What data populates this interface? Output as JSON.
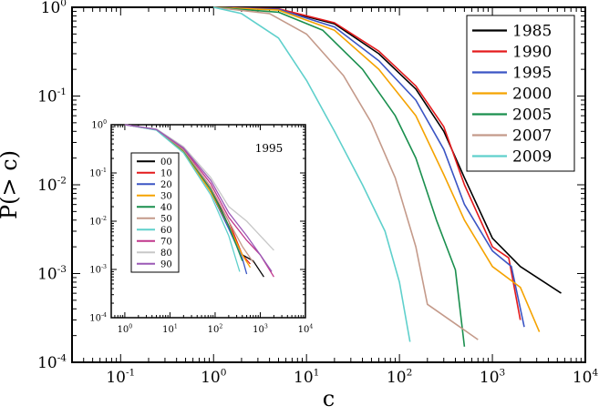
{
  "chart_data": [
    {
      "type": "line",
      "title": "",
      "xlabel": "c",
      "ylabel": "P(> c)",
      "xscale": "log",
      "yscale": "log",
      "xlim": [
        0.03,
        10000
      ],
      "ylim": [
        0.0001,
        1
      ],
      "x_ticks": [
        0.1,
        1,
        10,
        100,
        1000,
        10000
      ],
      "x_tick_labels": [
        [
          "10",
          "-1"
        ],
        [
          "10",
          "0"
        ],
        [
          "10",
          "1"
        ],
        [
          "10",
          "2"
        ],
        [
          "10",
          "3"
        ],
        [
          "10",
          "4"
        ]
      ],
      "y_ticks": [
        0.0001,
        0.001,
        0.01,
        0.1,
        1
      ],
      "y_tick_labels": [
        [
          "10",
          "-4"
        ],
        [
          "10",
          "-3"
        ],
        [
          "10",
          "-2"
        ],
        [
          "10",
          "-1"
        ],
        [
          "10",
          "0"
        ]
      ],
      "grid": false,
      "legend_position": "top-right",
      "series": [
        {
          "name": "1985",
          "color": "#000000",
          "points": [
            [
              1,
              1
            ],
            [
              5,
              0.95
            ],
            [
              20,
              0.65
            ],
            [
              60,
              0.3
            ],
            [
              150,
              0.12
            ],
            [
              300,
              0.04
            ],
            [
              500,
              0.012
            ],
            [
              1000,
              0.0025
            ],
            [
              2000,
              0.0012
            ],
            [
              5500,
              0.0006
            ]
          ]
        },
        {
          "name": "1990",
          "color": "#e41a1c",
          "points": [
            [
              1,
              1
            ],
            [
              5,
              0.96
            ],
            [
              20,
              0.67
            ],
            [
              60,
              0.32
            ],
            [
              150,
              0.13
            ],
            [
              300,
              0.045
            ],
            [
              500,
              0.01
            ],
            [
              1000,
              0.002
            ],
            [
              1500,
              0.0015
            ],
            [
              2000,
              0.0003
            ]
          ]
        },
        {
          "name": "1995",
          "color": "#3b55c4",
          "points": [
            [
              1,
              1
            ],
            [
              5,
              0.95
            ],
            [
              20,
              0.6
            ],
            [
              60,
              0.25
            ],
            [
              150,
              0.09
            ],
            [
              300,
              0.025
            ],
            [
              500,
              0.006
            ],
            [
              1000,
              0.0018
            ],
            [
              1600,
              0.0012
            ],
            [
              2200,
              0.00025
            ]
          ]
        },
        {
          "name": "2000",
          "color": "#f5a300",
          "points": [
            [
              1,
              1
            ],
            [
              5,
              0.93
            ],
            [
              20,
              0.55
            ],
            [
              60,
              0.2
            ],
            [
              150,
              0.06
            ],
            [
              300,
              0.013
            ],
            [
              500,
              0.004
            ],
            [
              1000,
              0.0012
            ],
            [
              2000,
              0.0007
            ],
            [
              3200,
              0.00022
            ]
          ]
        },
        {
          "name": "2005",
          "color": "#1a8f4e",
          "points": [
            [
              1,
              1
            ],
            [
              5,
              0.88
            ],
            [
              15,
              0.55
            ],
            [
              40,
              0.2
            ],
            [
              90,
              0.06
            ],
            [
              150,
              0.02
            ],
            [
              250,
              0.004
            ],
            [
              400,
              0.0011
            ],
            [
              500,
              0.00015
            ]
          ]
        },
        {
          "name": "2007",
          "color": "#c49a8a",
          "points": [
            [
              1,
              1
            ],
            [
              4,
              0.85
            ],
            [
              10,
              0.5
            ],
            [
              25,
              0.17
            ],
            [
              50,
              0.05
            ],
            [
              90,
              0.012
            ],
            [
              150,
              0.002
            ],
            [
              200,
              0.00045
            ],
            [
              700,
              0.00018
            ]
          ]
        },
        {
          "name": "2009",
          "color": "#5fd0cc",
          "points": [
            [
              1,
              1
            ],
            [
              2,
              0.85
            ],
            [
              5,
              0.45
            ],
            [
              10,
              0.15
            ],
            [
              20,
              0.04
            ],
            [
              40,
              0.01
            ],
            [
              70,
              0.003
            ],
            [
              100,
              0.0008
            ],
            [
              130,
              0.00017
            ]
          ]
        }
      ]
    },
    {
      "type": "line",
      "title": "1995",
      "xlabel": "",
      "ylabel": "",
      "xscale": "log",
      "yscale": "log",
      "xlim": [
        0.5,
        10000
      ],
      "ylim": [
        0.0001,
        1
      ],
      "x_ticks": [
        1,
        10,
        100,
        1000,
        10000
      ],
      "x_tick_labels": [
        [
          "10",
          "0"
        ],
        [
          "10",
          "1"
        ],
        [
          "10",
          "2"
        ],
        [
          "10",
          "3"
        ],
        [
          "10",
          "4"
        ]
      ],
      "y_ticks": [
        0.0001,
        0.001,
        0.01,
        0.1,
        1
      ],
      "y_tick_labels": [
        [
          "10",
          "-4"
        ],
        [
          "10",
          "-3"
        ],
        [
          "10",
          "-2"
        ],
        [
          "10",
          "-1"
        ],
        [
          "10",
          "0"
        ]
      ],
      "grid": false,
      "legend_position": "top-left",
      "series": [
        {
          "name": "00",
          "color": "#000000",
          "points": [
            [
              1,
              1
            ],
            [
              5,
              0.8
            ],
            [
              20,
              0.3
            ],
            [
              80,
              0.05
            ],
            [
              200,
              0.008
            ],
            [
              400,
              0.002
            ],
            [
              700,
              0.0015
            ],
            [
              1200,
              0.0007
            ]
          ]
        },
        {
          "name": "10",
          "color": "#e41a1c",
          "points": [
            [
              1,
              1
            ],
            [
              5,
              0.8
            ],
            [
              20,
              0.3
            ],
            [
              80,
              0.05
            ],
            [
              200,
              0.01
            ],
            [
              400,
              0.002
            ],
            [
              600,
              0.0013
            ]
          ]
        },
        {
          "name": "20",
          "color": "#3b55c4",
          "points": [
            [
              1,
              1
            ],
            [
              5,
              0.78
            ],
            [
              20,
              0.28
            ],
            [
              80,
              0.04
            ],
            [
              200,
              0.007
            ],
            [
              400,
              0.0017
            ],
            [
              500,
              0.0008
            ]
          ]
        },
        {
          "name": "30",
          "color": "#f5a300",
          "points": [
            [
              1,
              1
            ],
            [
              5,
              0.78
            ],
            [
              20,
              0.28
            ],
            [
              80,
              0.04
            ],
            [
              200,
              0.008
            ],
            [
              400,
              0.002
            ],
            [
              600,
              0.0011
            ]
          ]
        },
        {
          "name": "40",
          "color": "#1a8f4e",
          "points": [
            [
              1,
              1
            ],
            [
              5,
              0.79
            ],
            [
              20,
              0.29
            ],
            [
              80,
              0.045
            ],
            [
              200,
              0.008
            ],
            [
              400,
              0.0015
            ]
          ]
        },
        {
          "name": "50",
          "color": "#c49a8a",
          "points": [
            [
              1,
              1
            ],
            [
              5,
              0.79
            ],
            [
              20,
              0.3
            ],
            [
              80,
              0.05
            ],
            [
              200,
              0.01
            ],
            [
              400,
              0.003
            ],
            [
              700,
              0.0014
            ]
          ]
        },
        {
          "name": "60",
          "color": "#5fd0cc",
          "points": [
            [
              1,
              1
            ],
            [
              5,
              0.77
            ],
            [
              20,
              0.26
            ],
            [
              80,
              0.035
            ],
            [
              200,
              0.005
            ],
            [
              350,
              0.0009
            ]
          ]
        },
        {
          "name": "70",
          "color": "#c0368c",
          "points": [
            [
              1,
              1
            ],
            [
              5,
              0.8
            ],
            [
              20,
              0.32
            ],
            [
              80,
              0.06
            ],
            [
              200,
              0.012
            ],
            [
              500,
              0.004
            ],
            [
              1000,
              0.002
            ],
            [
              2000,
              0.0007
            ]
          ]
        },
        {
          "name": "80",
          "color": "#c8c8c8",
          "points": [
            [
              1,
              1
            ],
            [
              5,
              0.82
            ],
            [
              20,
              0.35
            ],
            [
              80,
              0.08
            ],
            [
              200,
              0.02
            ],
            [
              500,
              0.01
            ],
            [
              1000,
              0.005
            ],
            [
              2000,
              0.0025
            ]
          ]
        },
        {
          "name": "90",
          "color": "#9b59b6",
          "points": [
            [
              1,
              1
            ],
            [
              5,
              0.8
            ],
            [
              20,
              0.33
            ],
            [
              80,
              0.07
            ],
            [
              200,
              0.015
            ],
            [
              500,
              0.005
            ],
            [
              1000,
              0.002
            ],
            [
              1800,
              0.0009
            ]
          ]
        }
      ]
    }
  ]
}
